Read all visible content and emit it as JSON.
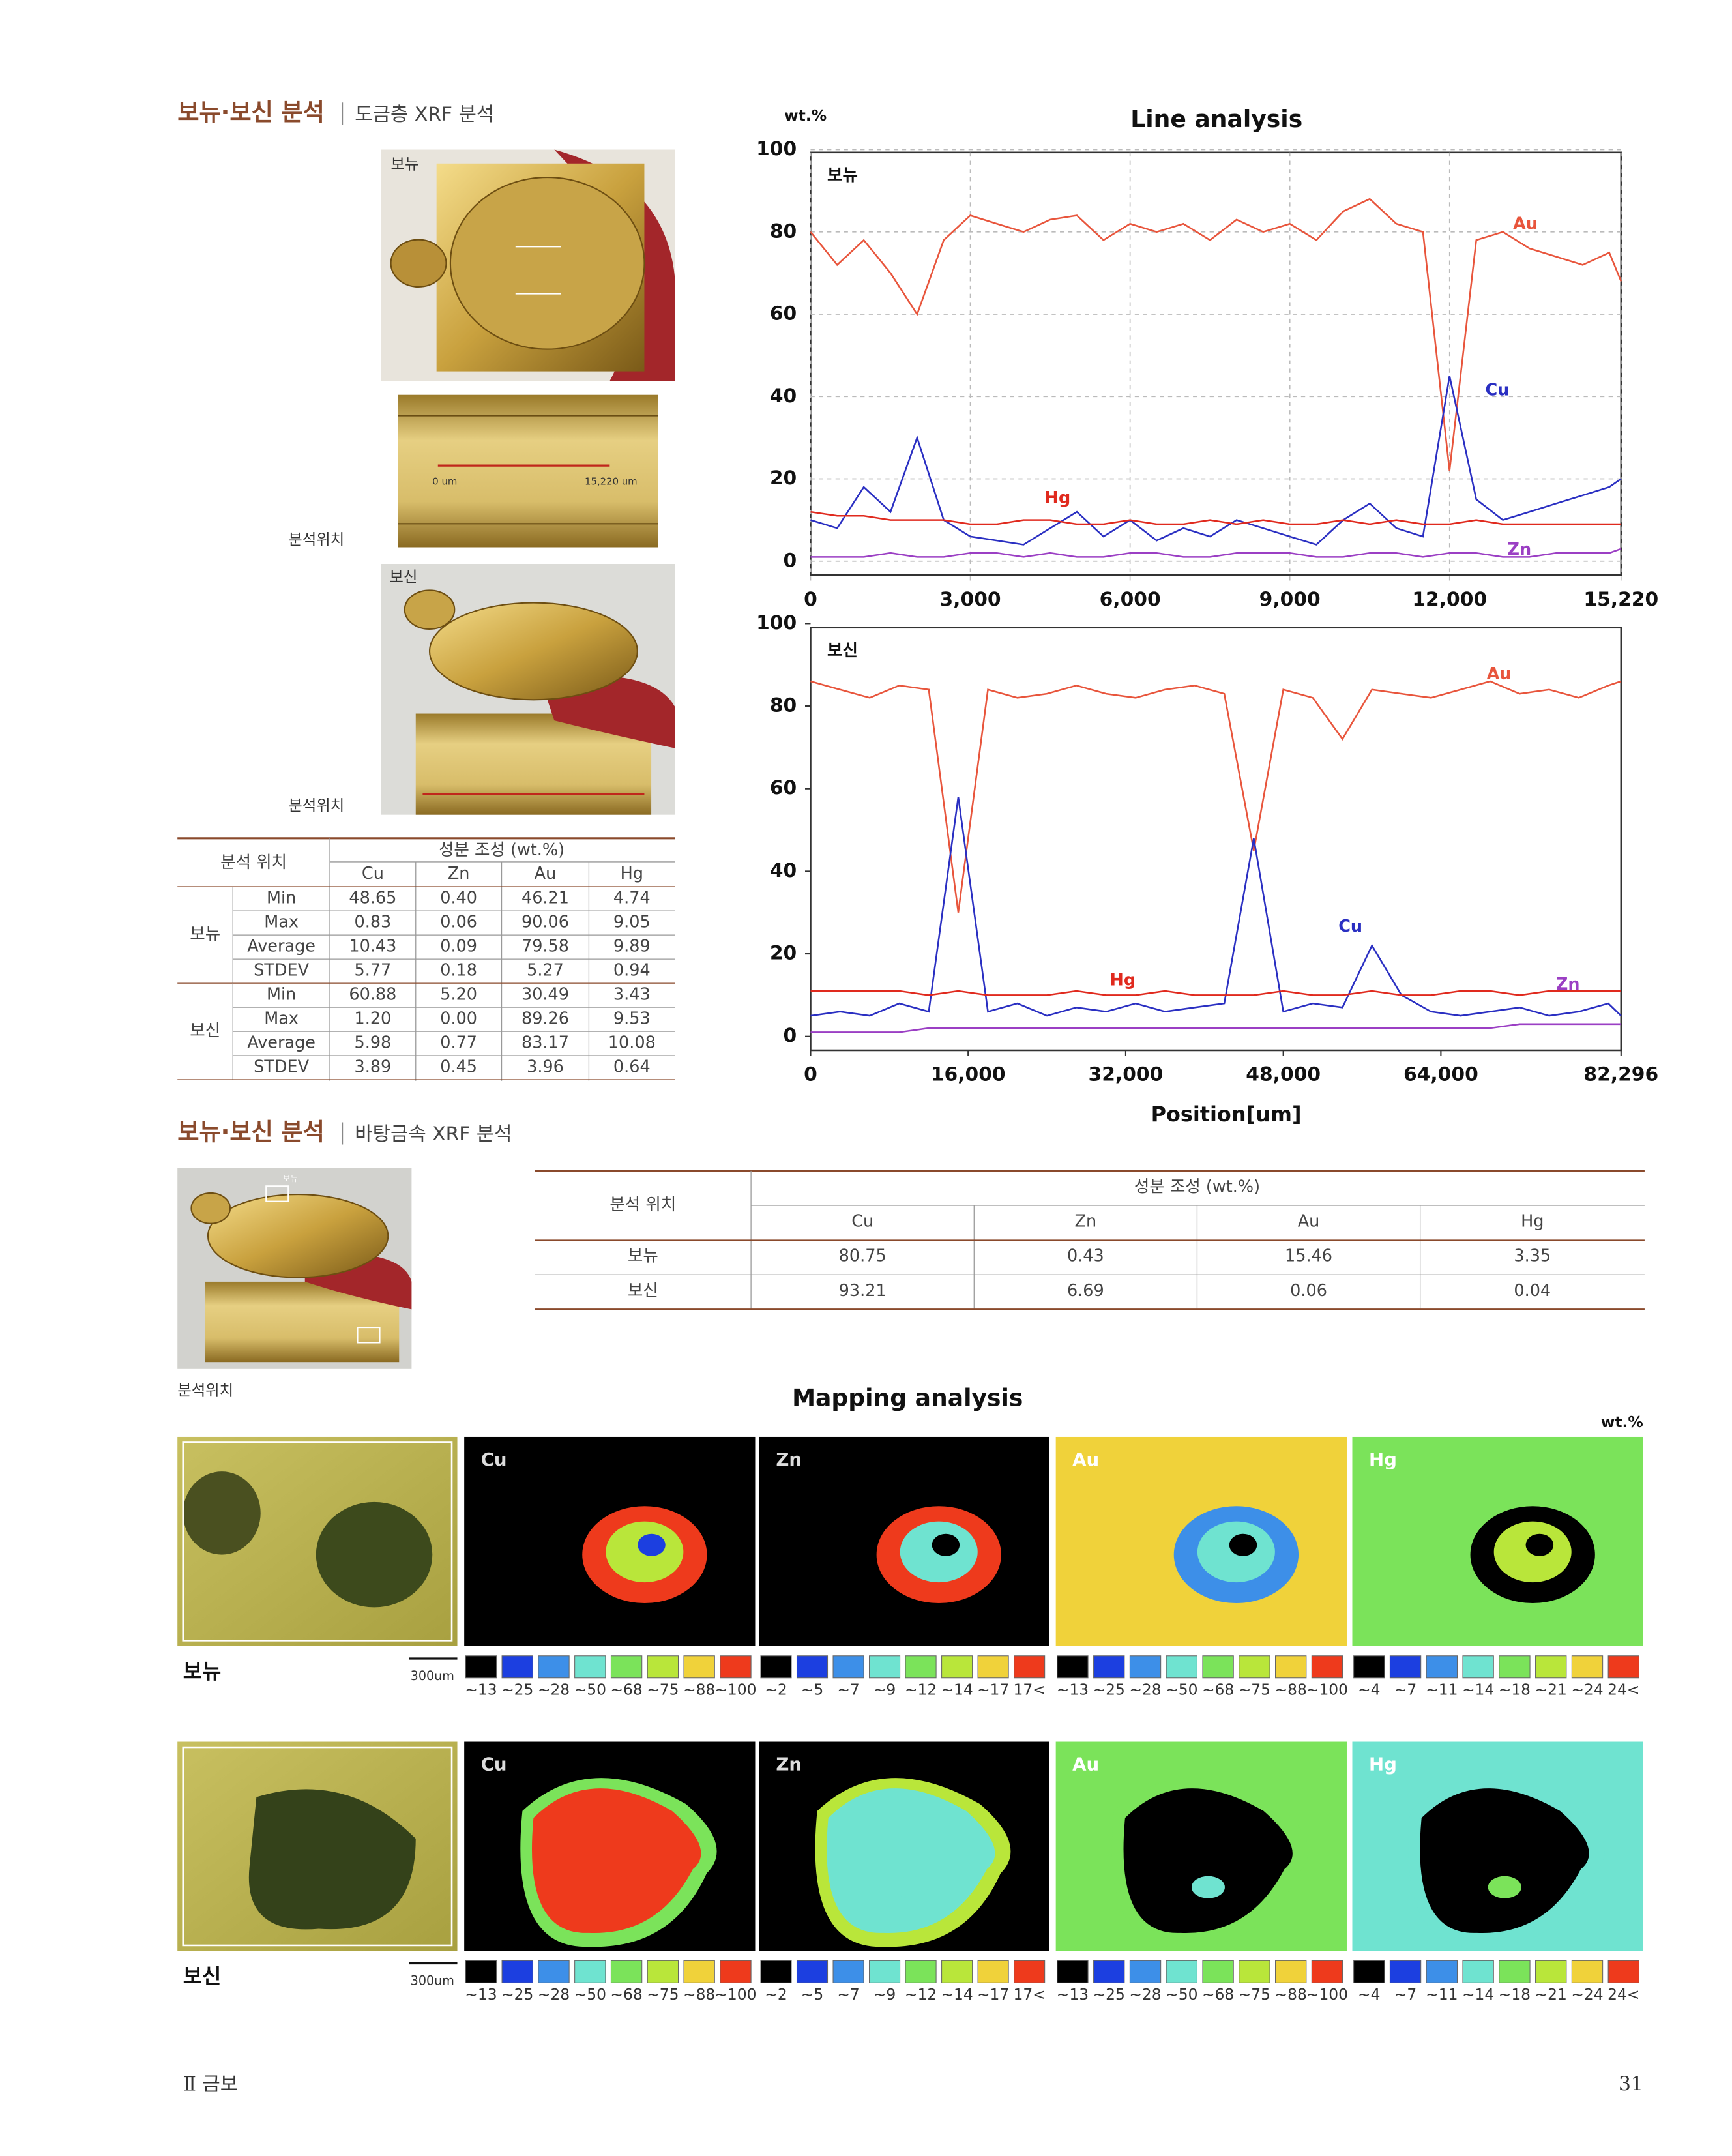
{
  "section1": {
    "title": "보뉴·보신 분석",
    "subtitle": "도금층 XRF 분석"
  },
  "photos": {
    "top_label": "보뉴",
    "scale_start": "0 um",
    "scale_end": "15,220 um",
    "position_label_1": "분석위치",
    "bottom_label": "보신",
    "position_label_2": "분석위치"
  },
  "table1": {
    "header_position": "분석 위치",
    "header_group": "성분 조성 (wt.%)",
    "columns": [
      "Cu",
      "Zn",
      "Au",
      "Hg"
    ],
    "groups": [
      {
        "name": "보뉴",
        "rows": [
          {
            "stat": "Min",
            "values": [
              "48.65",
              "0.40",
              "46.21",
              "4.74"
            ]
          },
          {
            "stat": "Max",
            "values": [
              "0.83",
              "0.06",
              "90.06",
              "9.05"
            ]
          },
          {
            "stat": "Average",
            "values": [
              "10.43",
              "0.09",
              "79.58",
              "9.89"
            ]
          },
          {
            "stat": "STDEV",
            "values": [
              "5.77",
              "0.18",
              "5.27",
              "0.94"
            ]
          }
        ]
      },
      {
        "name": "보신",
        "rows": [
          {
            "stat": "Min",
            "values": [
              "60.88",
              "5.20",
              "30.49",
              "3.43"
            ]
          },
          {
            "stat": "Max",
            "values": [
              "1.20",
              "0.00",
              "89.26",
              "9.53"
            ]
          },
          {
            "stat": "Average",
            "values": [
              "5.98",
              "0.77",
              "83.17",
              "10.08"
            ]
          },
          {
            "stat": "STDEV",
            "values": [
              "3.89",
              "0.45",
              "3.96",
              "0.64"
            ]
          }
        ]
      }
    ]
  },
  "chart_data": [
    {
      "type": "line",
      "title": "Line analysis",
      "y_unit": "wt.%",
      "panel_label": "보뉴",
      "x": [
        0,
        500,
        1000,
        1500,
        2000,
        2500,
        3000,
        3500,
        4000,
        4500,
        5000,
        5500,
        6000,
        6500,
        7000,
        7500,
        8000,
        8500,
        9000,
        9500,
        10000,
        10500,
        11000,
        11500,
        12000,
        12500,
        13000,
        13500,
        14000,
        14500,
        15000,
        15220
      ],
      "xlim": [
        0,
        15220
      ],
      "xticks": [
        0,
        {
          "value": 3000,
          "label": "3,000"
        },
        {
          "value": 6000,
          "label": "6,000"
        },
        {
          "value": 9000,
          "label": "9,000"
        },
        {
          "value": 12000,
          "label": "12,000"
        },
        {
          "value": 15220,
          "label": "15,220"
        }
      ],
      "ylim": [
        0,
        100
      ],
      "yticks": [
        0,
        20,
        40,
        60,
        80,
        100
      ],
      "grid": true,
      "series": [
        {
          "name": "Au",
          "color": "#e8553c",
          "values": [
            80,
            72,
            78,
            70,
            60,
            78,
            84,
            82,
            80,
            83,
            84,
            78,
            82,
            80,
            82,
            78,
            83,
            80,
            82,
            78,
            85,
            88,
            82,
            80,
            22,
            78,
            80,
            76,
            74,
            72,
            75,
            68
          ]
        },
        {
          "name": "Cu",
          "color": "#2a2fc2",
          "values": [
            10,
            8,
            18,
            12,
            30,
            10,
            6,
            5,
            4,
            8,
            12,
            6,
            10,
            5,
            8,
            6,
            10,
            8,
            6,
            4,
            10,
            14,
            8,
            6,
            45,
            15,
            10,
            12,
            14,
            16,
            18,
            20
          ]
        },
        {
          "name": "Hg",
          "color": "#e02a1e",
          "values": [
            12,
            11,
            11,
            10,
            10,
            10,
            9,
            9,
            10,
            10,
            9,
            9,
            10,
            9,
            9,
            10,
            9,
            10,
            9,
            9,
            10,
            9,
            10,
            9,
            9,
            10,
            9,
            9,
            9,
            9,
            9,
            9
          ]
        },
        {
          "name": "Zn",
          "color": "#9b3fc4",
          "values": [
            1,
            1,
            1,
            2,
            1,
            1,
            2,
            2,
            1,
            2,
            1,
            1,
            2,
            2,
            1,
            1,
            2,
            2,
            2,
            1,
            1,
            2,
            2,
            1,
            2,
            2,
            1,
            1,
            2,
            2,
            2,
            3
          ]
        }
      ]
    },
    {
      "type": "line",
      "panel_label": "보신",
      "xlabel": "Position[um]",
      "x": [
        0,
        3000,
        6000,
        9000,
        12000,
        15000,
        18000,
        21000,
        24000,
        27000,
        30000,
        33000,
        36000,
        39000,
        42000,
        45000,
        48000,
        51000,
        54000,
        57000,
        60000,
        63000,
        66000,
        69000,
        72000,
        75000,
        78000,
        81000,
        82296
      ],
      "xlim": [
        0,
        82296
      ],
      "xticks": [
        0,
        {
          "value": 16000,
          "label": "16,000"
        },
        {
          "value": 32000,
          "label": "32,000"
        },
        {
          "value": 48000,
          "label": "48,000"
        },
        {
          "value": 64000,
          "label": "64,000"
        },
        {
          "value": 82296,
          "label": "82,296"
        }
      ],
      "ylim": [
        0,
        100
      ],
      "yticks": [
        0,
        20,
        40,
        60,
        80,
        100
      ],
      "grid": false,
      "series": [
        {
          "name": "Au",
          "color": "#e8553c",
          "values": [
            86,
            84,
            82,
            85,
            84,
            30,
            84,
            82,
            83,
            85,
            83,
            82,
            84,
            85,
            83,
            45,
            84,
            82,
            72,
            84,
            83,
            82,
            84,
            86,
            83,
            84,
            82,
            85,
            86
          ]
        },
        {
          "name": "Cu",
          "color": "#2a2fc2",
          "values": [
            5,
            6,
            5,
            8,
            6,
            58,
            6,
            8,
            5,
            7,
            6,
            8,
            6,
            7,
            8,
            48,
            6,
            8,
            7,
            22,
            10,
            6,
            5,
            6,
            7,
            5,
            6,
            8,
            5
          ]
        },
        {
          "name": "Hg",
          "color": "#e02a1e",
          "values": [
            11,
            11,
            11,
            11,
            10,
            11,
            10,
            10,
            10,
            11,
            10,
            10,
            11,
            10,
            10,
            10,
            11,
            10,
            10,
            11,
            10,
            10,
            11,
            11,
            10,
            11,
            11,
            11,
            11
          ]
        },
        {
          "name": "Zn",
          "color": "#9b3fc4",
          "values": [
            1,
            1,
            1,
            1,
            2,
            2,
            2,
            2,
            2,
            2,
            2,
            2,
            2,
            2,
            2,
            2,
            2,
            2,
            2,
            2,
            2,
            2,
            2,
            2,
            3,
            3,
            3,
            3,
            3
          ]
        }
      ]
    }
  ],
  "section2": {
    "title": "보뉴·보신 분석",
    "subtitle": "바탕금속 XRF 분석",
    "photo_label": "보뉴",
    "position_label": "분석위치"
  },
  "table2": {
    "header_position": "분석 위치",
    "header_group": "성분 조성 (wt.%)",
    "columns": [
      "Cu",
      "Zn",
      "Au",
      "Hg"
    ],
    "rows": [
      {
        "name": "보뉴",
        "values": [
          "80.75",
          "0.43",
          "15.46",
          "3.35"
        ]
      },
      {
        "name": "보신",
        "values": [
          "93.21",
          "6.69",
          "0.06",
          "0.04"
        ]
      }
    ]
  },
  "mapping": {
    "title": "Mapping analysis",
    "unit": "wt.%",
    "palette": [
      "#000000",
      "#1c3fe0",
      "#3d8fe8",
      "#6fe3d0",
      "#7be35a",
      "#b9e63a",
      "#f0d23a",
      "#ee3a1c"
    ],
    "rows": [
      {
        "name": "보뉴",
        "scale": "300um"
      },
      {
        "name": "보신",
        "scale": "300um"
      }
    ],
    "elements": [
      {
        "name": "Cu",
        "legend": [
          "~13",
          "~25",
          "~28",
          "~50",
          "~68",
          "~75",
          "~88",
          "~100"
        ]
      },
      {
        "name": "Zn",
        "legend": [
          "~2",
          "~5",
          "~7",
          "~9",
          "~12",
          "~14",
          "~17",
          "17<"
        ]
      },
      {
        "name": "Au",
        "legend": [
          "~13",
          "~25",
          "~28",
          "~50",
          "~68",
          "~75",
          "~88",
          "~100"
        ]
      },
      {
        "name": "Hg",
        "legend": [
          "~4",
          "~7",
          "~11",
          "~14",
          "~18",
          "~21",
          "~24",
          "24<"
        ]
      }
    ]
  },
  "footer": {
    "chapter": "Ⅱ 금보",
    "page": "31"
  }
}
